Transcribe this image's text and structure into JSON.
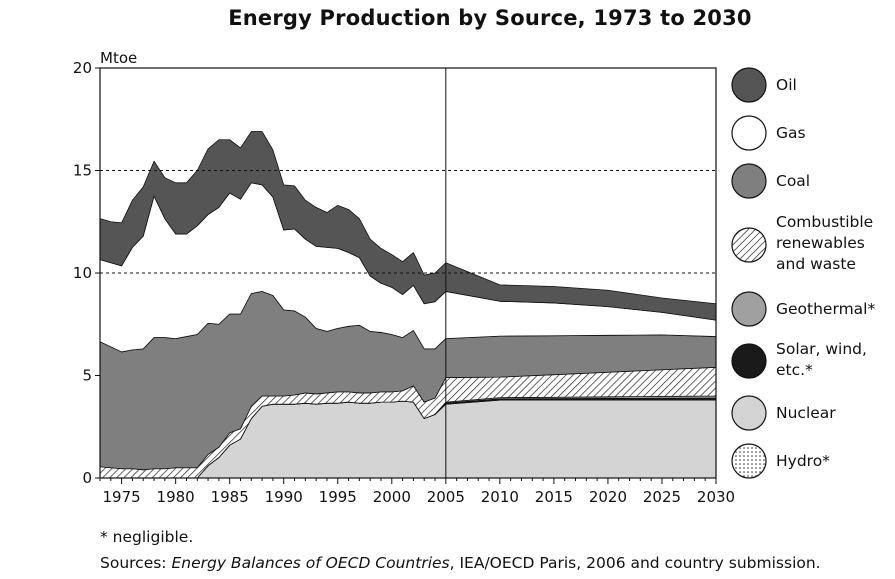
{
  "chart_data": {
    "type": "area",
    "title": "Energy Production by Source, 1973 to 2030",
    "ylabel": "Mtoe",
    "xlabel": "",
    "xlim": [
      1973,
      2030
    ],
    "ylim": [
      0,
      20
    ],
    "x_ticks": [
      1975,
      1980,
      1985,
      1990,
      1995,
      2000,
      2005,
      2010,
      2015,
      2020,
      2025,
      2030
    ],
    "y_ticks": [
      0,
      5,
      10,
      15,
      20
    ],
    "reference_lines": [
      15,
      10
    ],
    "divider_year": 2005,
    "stacking_order_bottom_to_top": [
      "Hydro",
      "Nuclear",
      "Solar, wind, etc.*",
      "Geothermal*",
      "Combustible renewables and waste",
      "Coal",
      "Gas",
      "Oil"
    ],
    "x": [
      1973,
      1974,
      1975,
      1976,
      1977,
      1978,
      1979,
      1980,
      1981,
      1982,
      1983,
      1984,
      1985,
      1986,
      1987,
      1988,
      1989,
      1990,
      1991,
      1992,
      1993,
      1994,
      1995,
      1996,
      1997,
      1998,
      1999,
      2000,
      2001,
      2002,
      2003,
      2004,
      2005,
      2010,
      2015,
      2020,
      2025,
      2030
    ],
    "series": [
      {
        "name": "Hydro",
        "values": [
          0.0,
          0.0,
          0.0,
          0.0,
          0.0,
          0.0,
          0.0,
          0.0,
          0.0,
          0.0,
          0.0,
          0.0,
          0.0,
          0.0,
          0.0,
          0.0,
          0.0,
          0.0,
          0.0,
          0.0,
          0.0,
          0.0,
          0.0,
          0.0,
          0.0,
          0.0,
          0.0,
          0.0,
          0.0,
          0.0,
          0.0,
          0.0,
          0.0,
          0.0,
          0.0,
          0.0,
          0.0,
          0.0
        ]
      },
      {
        "name": "Nuclear",
        "values": [
          0.0,
          0.0,
          0.0,
          0.0,
          0.0,
          0.0,
          0.0,
          0.0,
          0.0,
          0.0,
          0.6,
          1.0,
          1.6,
          1.9,
          2.9,
          3.5,
          3.6,
          3.6,
          3.6,
          3.65,
          3.6,
          3.65,
          3.65,
          3.7,
          3.65,
          3.65,
          3.7,
          3.7,
          3.75,
          3.7,
          2.9,
          3.1,
          3.6,
          3.8,
          3.8,
          3.8,
          3.8,
          3.8
        ]
      },
      {
        "name": "Solar, wind, etc.*",
        "values": [
          0.0,
          0.0,
          0.0,
          0.0,
          0.0,
          0.0,
          0.0,
          0.0,
          0.0,
          0.0,
          0.0,
          0.0,
          0.0,
          0.0,
          0.0,
          0.0,
          0.0,
          0.0,
          0.0,
          0.0,
          0.0,
          0.0,
          0.0,
          0.0,
          0.0,
          0.0,
          0.0,
          0.0,
          0.0,
          0.0,
          0.0,
          0.0,
          0.05,
          0.06,
          0.07,
          0.08,
          0.09,
          0.1
        ]
      },
      {
        "name": "Geothermal*",
        "values": [
          0.0,
          0.0,
          0.0,
          0.0,
          0.0,
          0.0,
          0.0,
          0.0,
          0.0,
          0.0,
          0.0,
          0.0,
          0.0,
          0.0,
          0.0,
          0.0,
          0.0,
          0.0,
          0.0,
          0.0,
          0.0,
          0.0,
          0.0,
          0.0,
          0.0,
          0.0,
          0.0,
          0.0,
          0.0,
          0.0,
          0.0,
          0.0,
          0.05,
          0.06,
          0.07,
          0.08,
          0.09,
          0.1
        ]
      },
      {
        "name": "Combustible renewables and waste",
        "values": [
          0.55,
          0.5,
          0.45,
          0.45,
          0.4,
          0.45,
          0.45,
          0.5,
          0.5,
          0.5,
          0.55,
          0.5,
          0.6,
          0.5,
          0.6,
          0.5,
          0.4,
          0.4,
          0.45,
          0.5,
          0.5,
          0.5,
          0.55,
          0.5,
          0.5,
          0.5,
          0.5,
          0.5,
          0.5,
          0.8,
          0.8,
          0.8,
          1.2,
          1.0,
          1.1,
          1.2,
          1.3,
          1.4
        ]
      },
      {
        "name": "Coal",
        "values": [
          6.1,
          5.9,
          5.7,
          5.8,
          5.9,
          6.4,
          6.4,
          6.3,
          6.4,
          6.5,
          6.4,
          6.0,
          5.8,
          5.6,
          5.5,
          5.1,
          4.9,
          4.2,
          4.1,
          3.7,
          3.2,
          3.0,
          3.1,
          3.2,
          3.3,
          3.0,
          2.9,
          2.8,
          2.6,
          2.7,
          2.6,
          2.4,
          1.9,
          2.0,
          1.9,
          1.8,
          1.7,
          1.5
        ]
      },
      {
        "name": "Gas",
        "values": [
          4.0,
          4.1,
          4.2,
          5.0,
          5.5,
          6.9,
          5.8,
          5.1,
          5.0,
          5.3,
          5.3,
          5.7,
          5.9,
          5.6,
          5.4,
          5.2,
          4.8,
          3.9,
          4.0,
          3.8,
          4.0,
          4.1,
          3.9,
          3.6,
          3.3,
          2.7,
          2.4,
          2.3,
          2.1,
          2.2,
          2.2,
          2.3,
          2.3,
          1.7,
          1.6,
          1.4,
          1.1,
          0.8
        ]
      },
      {
        "name": "Oil",
        "values": [
          2.0,
          2.0,
          2.1,
          2.3,
          2.4,
          1.7,
          2.0,
          2.5,
          2.5,
          2.7,
          3.2,
          3.3,
          2.6,
          2.5,
          2.5,
          2.6,
          2.3,
          2.2,
          2.1,
          1.9,
          1.9,
          1.7,
          2.1,
          2.1,
          1.9,
          1.8,
          1.7,
          1.6,
          1.6,
          1.6,
          1.4,
          1.4,
          1.4,
          0.8,
          0.8,
          0.8,
          0.7,
          0.8
        ]
      }
    ],
    "legend": [
      {
        "label": "Oil",
        "fill": "#555555",
        "pattern": "solid"
      },
      {
        "label": "Gas",
        "fill": "#ffffff",
        "pattern": "solid"
      },
      {
        "label": "Coal",
        "fill": "#7f7f7f",
        "pattern": "solid"
      },
      {
        "label": "Combustible renewables and waste",
        "fill": "#ffffff",
        "pattern": "hatch"
      },
      {
        "label": "Geothermal*",
        "fill": "#a0a0a0",
        "pattern": "solid"
      },
      {
        "label": "Solar, wind, etc.*",
        "fill": "#1a1a1a",
        "pattern": "solid"
      },
      {
        "label": "Nuclear",
        "fill": "#d4d4d4",
        "pattern": "solid"
      },
      {
        "label": "Hydro*",
        "fill": "#ffffff",
        "pattern": "dots"
      }
    ]
  },
  "legend_labels": {
    "oil": "Oil",
    "gas": "Gas",
    "coal": "Coal",
    "combustible_l1": "Combustible",
    "combustible_l2": "renewables",
    "combustible_l3": "and waste",
    "geothermal": "Geothermal*",
    "solar_l1": "Solar, wind,",
    "solar_l2": "etc.*",
    "nuclear": "Nuclear",
    "hydro": "Hydro*"
  },
  "footnote": "* negligible.",
  "sources": {
    "prefix": "Sources: ",
    "italic": "Energy Balances of OECD Countries",
    "suffix": ", IEA/OECD Paris, 2006 and country submission."
  }
}
